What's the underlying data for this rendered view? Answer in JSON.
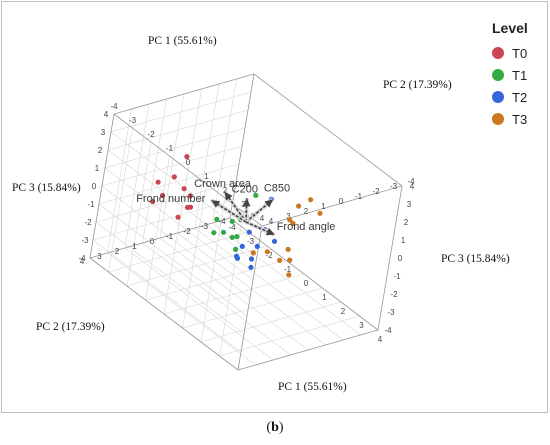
{
  "caption": {
    "open": "(",
    "letter": "b",
    "close": ")"
  },
  "legend": {
    "title": "Level"
  },
  "colors": {
    "T0": "#cc4455",
    "T1": "#33aa44",
    "T2": "#3366dd",
    "T3": "#cc7722",
    "grid": "#d6d6d6",
    "box": "#9a9a9a",
    "arrow": "#444444"
  },
  "chart_data": {
    "type": "scatter",
    "subtype": "3d-pca-biplot",
    "title": "",
    "axes": {
      "x": {
        "label": "PC 1 (55.61%)",
        "range": [
          -4,
          4
        ]
      },
      "y": {
        "label": "PC 2 (17.39%)",
        "range": [
          -4,
          4
        ]
      },
      "z": {
        "label": "PC 3 (15.84%)",
        "range": [
          -4,
          4
        ]
      }
    },
    "ticks": [
      "-4",
      "-3",
      "-2",
      "-1",
      "0",
      "1",
      "2",
      "3",
      "4"
    ],
    "loadings": [
      {
        "name": "C850",
        "dir": [
          0.65,
          -0.58,
          1.6
        ],
        "len": 1.0
      },
      {
        "name": "Crown area",
        "dir": [
          -1.35,
          -0.1,
          0.6
        ],
        "len": 1.0
      },
      {
        "name": "C200",
        "dir": [
          -0.15,
          0.0,
          1.2
        ],
        "len": 1.0
      },
      {
        "name": "Frond number",
        "dir": [
          -1.6,
          0.3,
          0.05
        ],
        "len": 1.0
      },
      {
        "name": "Frond angle",
        "dir": [
          1.4,
          -0.1,
          0.35
        ],
        "len": 1.0
      }
    ],
    "series": [
      {
        "name": "T0",
        "points": [
          [
            -3.2,
            0.2,
            1.2
          ],
          [
            -3.4,
            0.5,
            0.0
          ],
          [
            -3.0,
            0.3,
            -0.4
          ],
          [
            -2.8,
            0.1,
            -0.7
          ],
          [
            -3.5,
            0.9,
            -1.0
          ],
          [
            -3.6,
            1.3,
            -1.3
          ],
          [
            -3.9,
            0.8,
            -0.6
          ],
          [
            -2.6,
            0.4,
            -1.1
          ],
          [
            -2.3,
            0.6,
            -0.8
          ],
          [
            -2.5,
            1.0,
            -1.4
          ]
        ]
      },
      {
        "name": "T1",
        "points": [
          [
            -0.6,
            0.5,
            -0.9
          ],
          [
            -0.9,
            0.7,
            -1.1
          ],
          [
            -0.3,
            0.3,
            -1.0
          ],
          [
            -1.1,
            0.4,
            -0.6
          ],
          [
            0.2,
            0.6,
            -1.2
          ],
          [
            -0.5,
            0.2,
            -0.3
          ],
          [
            0.0,
            0.4,
            -0.7
          ],
          [
            0.1,
            -0.2,
            1.5
          ],
          [
            0.3,
            0.0,
            0.6
          ],
          [
            -0.2,
            0.1,
            0.0
          ]
        ]
      },
      {
        "name": "T2",
        "points": [
          [
            0.3,
            0.6,
            -1.5
          ],
          [
            0.6,
            0.9,
            -1.3
          ],
          [
            1.0,
            0.5,
            -1.6
          ],
          [
            0.9,
            0.2,
            -0.6
          ],
          [
            0.4,
            0.2,
            -0.2
          ],
          [
            1.2,
            0.8,
            -0.9
          ],
          [
            0.8,
            -0.3,
            1.8
          ],
          [
            1.6,
            0.1,
            0.2
          ],
          [
            1.2,
            0.3,
            0.6
          ],
          [
            0.5,
            0.6,
            -0.8
          ]
        ]
      },
      {
        "name": "T3",
        "points": [
          [
            2.2,
            -0.9,
            2.7
          ],
          [
            2.0,
            -0.5,
            2.3
          ],
          [
            2.6,
            -1.1,
            2.2
          ],
          [
            2.1,
            -0.2,
            1.5
          ],
          [
            1.6,
            -0.6,
            1.2
          ],
          [
            2.4,
            0.2,
            0.4
          ],
          [
            2.8,
            0.5,
            0.2
          ],
          [
            2.4,
            0.6,
            -0.1
          ],
          [
            3.2,
            0.9,
            -0.2
          ],
          [
            1.5,
            0.3,
            -0.4
          ],
          [
            1.0,
            0.5,
            -0.8
          ]
        ]
      }
    ]
  }
}
